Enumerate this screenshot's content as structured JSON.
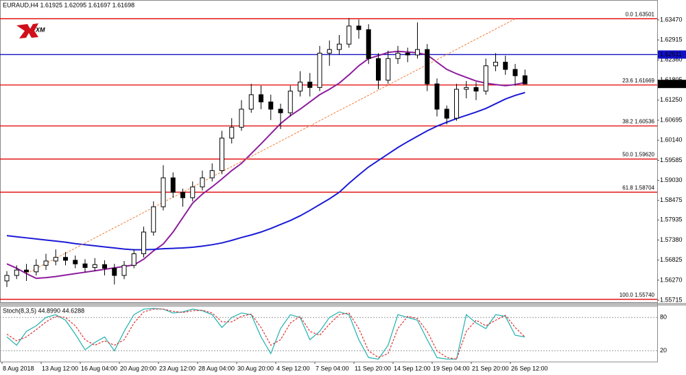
{
  "chart_data": [
    {
      "type": "candlestick",
      "title": "EURAUD,H4 1.61925 1.62095 1.61697 1.61698",
      "logo": "XM",
      "categories": [
        "8 Aug 2018",
        null,
        null,
        null,
        "13 Aug 12:00",
        null,
        null,
        null,
        "16 Aug 04:00",
        null,
        null,
        null,
        "20 Aug 20:00",
        null,
        null,
        null,
        "23 Aug 12:00",
        null,
        null,
        null,
        "28 Aug 04:00",
        null,
        null,
        null,
        "30 Aug 20:00",
        null,
        null,
        null,
        "4 Sep 12:00",
        null,
        null,
        null,
        "7 Sep 04:00",
        null,
        null,
        null,
        "11 Sep 20:00",
        null,
        null,
        null,
        "14 Sep 12:00",
        null,
        null,
        null,
        "19 Sep 04:00",
        null,
        null,
        null,
        "21 Sep 20:00",
        null,
        null,
        null,
        "26 Sep 12:00",
        null
      ],
      "open": [
        1.5625,
        1.564,
        1.5655,
        1.565,
        1.5668,
        1.568,
        1.569,
        1.5682,
        1.5672,
        1.5662,
        1.567,
        1.566,
        1.564,
        1.5668,
        1.57,
        1.576,
        1.583,
        1.591,
        1.587,
        1.5855,
        1.5885,
        1.591,
        1.593,
        1.602,
        1.605,
        1.61,
        1.614,
        1.612,
        1.61,
        1.609,
        1.615,
        1.6175,
        1.616,
        1.6255,
        1.6265,
        1.628,
        1.633,
        1.632,
        1.624,
        1.618,
        1.624,
        1.6255,
        1.625,
        1.6265,
        1.617,
        1.61,
        1.6075,
        1.6155,
        1.616,
        1.615,
        1.622,
        1.623,
        1.621,
        1.61925
      ],
      "high": [
        1.5652,
        1.5668,
        1.5672,
        1.5685,
        1.57,
        1.5712,
        1.5705,
        1.5695,
        1.5685,
        1.5688,
        1.5682,
        1.5672,
        1.568,
        1.5712,
        1.5775,
        1.5845,
        1.5945,
        1.5925,
        1.588,
        1.59,
        1.593,
        1.595,
        1.604,
        1.6075,
        1.6125,
        1.617,
        1.6165,
        1.614,
        1.6115,
        1.6165,
        1.6205,
        1.62,
        1.6275,
        1.629,
        1.6305,
        1.6352,
        1.6348,
        1.6335,
        1.6255,
        1.6262,
        1.6275,
        1.627,
        1.634,
        1.628,
        1.6185,
        1.611,
        1.617,
        1.6178,
        1.6175,
        1.624,
        1.6255,
        1.6248,
        1.6225,
        1.62095
      ],
      "low": [
        1.5608,
        1.563,
        1.5625,
        1.564,
        1.5655,
        1.5668,
        1.5668,
        1.566,
        1.5648,
        1.5652,
        1.564,
        1.5615,
        1.563,
        1.566,
        1.569,
        1.575,
        1.582,
        1.5855,
        1.583,
        1.5845,
        1.5875,
        1.59,
        1.592,
        1.6005,
        1.604,
        1.609,
        1.61,
        1.607,
        1.6045,
        1.608,
        1.6135,
        1.6135,
        1.615,
        1.622,
        1.625,
        1.627,
        1.6295,
        1.6225,
        1.6155,
        1.617,
        1.6225,
        1.623,
        1.624,
        1.615,
        1.608,
        1.6058,
        1.6068,
        1.613,
        1.6125,
        1.614,
        1.6205,
        1.6195,
        1.6165,
        1.61697
      ],
      "close": [
        1.564,
        1.5655,
        1.565,
        1.5668,
        1.568,
        1.569,
        1.5682,
        1.5672,
        1.5662,
        1.567,
        1.566,
        1.564,
        1.5668,
        1.57,
        1.576,
        1.583,
        1.591,
        1.587,
        1.5855,
        1.5885,
        1.591,
        1.593,
        1.602,
        1.605,
        1.61,
        1.614,
        1.612,
        1.61,
        1.609,
        1.615,
        1.6175,
        1.616,
        1.6255,
        1.6265,
        1.628,
        1.633,
        1.632,
        1.624,
        1.618,
        1.624,
        1.6255,
        1.625,
        1.6265,
        1.617,
        1.61,
        1.6075,
        1.6155,
        1.616,
        1.615,
        1.622,
        1.623,
        1.621,
        1.61925,
        1.61698
      ],
      "up_color": "#ffffff",
      "down_color": "#000000",
      "lines": [
        {
          "color": "#8e1c9e",
          "values": [
            1.5672,
            1.566,
            1.5645,
            1.5632,
            1.5634,
            1.5637,
            1.5641,
            1.5645,
            1.5649,
            1.5653,
            1.5657,
            1.5661,
            1.5665,
            1.5669,
            1.5685,
            1.5708,
            1.5727,
            1.576,
            1.58,
            1.584,
            1.5865,
            1.5885,
            1.5907,
            1.593,
            1.595,
            1.5977,
            1.6004,
            1.6032,
            1.606,
            1.6082,
            1.61,
            1.612,
            1.614,
            1.6155,
            1.6172,
            1.6195,
            1.622,
            1.624,
            1.6248,
            1.6257,
            1.626,
            1.6258,
            1.6256,
            1.625,
            1.623,
            1.621,
            1.6198,
            1.6188,
            1.6178,
            1.6172,
            1.6168,
            1.6165,
            1.6168,
            1.6174
          ]
        },
        {
          "color": "#1a1ad6",
          "values": [
            1.575,
            1.5747,
            1.5744,
            1.5741,
            1.5738,
            1.5735,
            1.5732,
            1.5728,
            1.5725,
            1.5722,
            1.5719,
            1.5716,
            1.5713,
            1.5711,
            1.5711,
            1.5712,
            1.5714,
            1.5715,
            1.5716,
            1.5718,
            1.5721,
            1.5725,
            1.573,
            1.5737,
            1.5745,
            1.5752,
            1.576,
            1.577,
            1.5781,
            1.5792,
            1.5805,
            1.582,
            1.5836,
            1.5852,
            1.587,
            1.5895,
            1.5918,
            1.594,
            1.5958,
            1.5976,
            1.5994,
            1.601,
            1.6025,
            1.604,
            1.6053,
            1.6064,
            1.6074,
            1.6083,
            1.6092,
            1.6102,
            1.6115,
            1.6128,
            1.6138,
            1.6146
          ]
        }
      ],
      "trendline": {
        "color": "#f07a30",
        "x": [
          2,
          52
        ],
        "values": [
          1.5645,
          1.635
        ]
      },
      "level_color": "#e00000",
      "levels": [
        {
          "value": 1.63501,
          "label": "0.0 1.63501"
        },
        {
          "value": 1.61669,
          "label": "23.6 1.61669"
        },
        {
          "value": 1.60536,
          "label": "38.2 1.60536"
        },
        {
          "value": 1.5962,
          "label": "50.0 1.59620"
        },
        {
          "value": 1.58704,
          "label": "61.8 1.58704"
        },
        {
          "value": 1.5574,
          "label": "100.0 1.55740"
        }
      ],
      "hline": {
        "value": 1.62511,
        "label": "1.62511",
        "color": "#1010c8"
      },
      "current_price": {
        "value": 1.61698,
        "label": "1.61698"
      },
      "ylim": [
        1.5566,
        1.6402
      ],
      "yticks": [
        {
          "value": 1.6347,
          "label": "1.63470"
        },
        {
          "value": 1.62915,
          "label": "1.62915"
        },
        {
          "value": 1.6236,
          "label": "1.62360"
        },
        {
          "value": 1.61805,
          "label": "1.61805"
        },
        {
          "value": 1.6125,
          "label": "1.61250"
        },
        {
          "value": 1.60695,
          "label": "1.60695"
        },
        {
          "value": 1.6014,
          "label": "1.60140"
        },
        {
          "value": 1.59585,
          "label": "1.59585"
        },
        {
          "value": 1.5903,
          "label": "1.59030"
        },
        {
          "value": 1.58475,
          "label": "1.58475"
        },
        {
          "value": 1.57935,
          "label": "1.57935"
        },
        {
          "value": 1.5738,
          "label": "1.57380"
        },
        {
          "value": 1.56825,
          "label": "1.56825"
        },
        {
          "value": 1.5627,
          "label": "1.56270"
        },
        {
          "value": 1.55715,
          "label": "1.55715"
        }
      ]
    },
    {
      "type": "line",
      "title": "Stoch(8,3,5) 44.8990 44.6288",
      "series": [
        {
          "color": "#20b0b0",
          "values": [
            45,
            30,
            55,
            65,
            80,
            85,
            75,
            50,
            22,
            35,
            45,
            20,
            55,
            85,
            95,
            96,
            95,
            88,
            90,
            95,
            92,
            85,
            62,
            80,
            88,
            85,
            45,
            15,
            60,
            85,
            80,
            40,
            55,
            80,
            90,
            85,
            40,
            8,
            5,
            30,
            85,
            80,
            75,
            40,
            8,
            5,
            5,
            85,
            70,
            60,
            85,
            82,
            48,
            44.899
          ]
        },
        {
          "color": "#e03030",
          "dash": true,
          "values": [
            50,
            38,
            45,
            58,
            72,
            82,
            80,
            65,
            40,
            30,
            38,
            30,
            40,
            70,
            90,
            95,
            95,
            91,
            89,
            92,
            93,
            88,
            72,
            72,
            82,
            86,
            62,
            30,
            40,
            70,
            82,
            55,
            48,
            68,
            85,
            88,
            60,
            20,
            8,
            15,
            60,
            82,
            78,
            55,
            20,
            8,
            5,
            55,
            75,
            65,
            75,
            84,
            62,
            44.6288
          ]
        }
      ],
      "ylim": [
        0,
        100
      ],
      "yticks": [
        80,
        20
      ]
    }
  ]
}
